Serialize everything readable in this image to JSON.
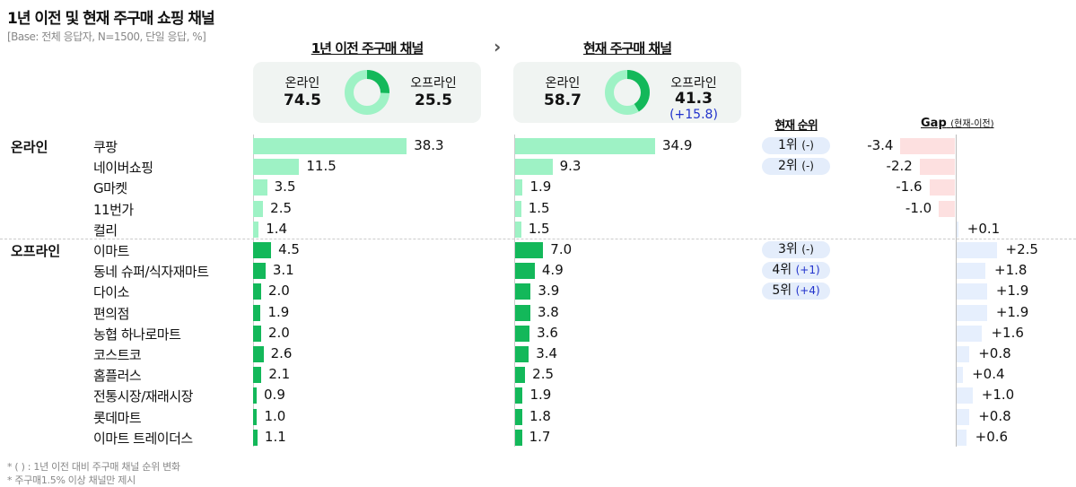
{
  "title": "1년 이전 및 현재 주구매 쇼핑 채널",
  "subtitle": "[Base: 전체 응답자, N=1500, 단일 응답, %]",
  "colors": {
    "online": "#9ef2c5",
    "offline": "#13b85a",
    "negative": "#fde0e0",
    "positive": "#e6effd",
    "change": "#2233cc"
  },
  "before": {
    "title": "1년 이전 주구매 채널",
    "online_label": "온라인",
    "online": "74.5",
    "offline_label": "오프라인",
    "offline": "25.5"
  },
  "arrow_icon": "chevron-right-icon",
  "now": {
    "title": "현재 주구매 채널",
    "online_label": "온라인",
    "online": "58.7",
    "offline_label": "오프라인",
    "offline": "41.3",
    "offline_change": "(+15.8)"
  },
  "rank_header": "현재 순위",
  "gap_header": "Gap",
  "gap_header_note": "(현재-이전)",
  "groups": [
    {
      "label": "온라인"
    },
    {
      "label": "오프라인"
    }
  ],
  "chart_data": {
    "type": "bar",
    "categories": [
      "쿠팡",
      "네이버쇼핑",
      "G마켓",
      "11번가",
      "컬리",
      "이마트",
      "동네 슈퍼/식자재마트",
      "다이소",
      "편의점",
      "농협 하나로마트",
      "코스트코",
      "홈플러스",
      "전통시장/재래시장",
      "롯데마트",
      "이마트 트레이더스"
    ],
    "category_group": [
      "온라인",
      "온라인",
      "온라인",
      "온라인",
      "온라인",
      "오프라인",
      "오프라인",
      "오프라인",
      "오프라인",
      "오프라인",
      "오프라인",
      "오프라인",
      "오프라인",
      "오프라인",
      "오프라인"
    ],
    "series": [
      {
        "name": "1년 이전 주구매 채널",
        "values": [
          38.3,
          11.5,
          3.5,
          2.5,
          1.4,
          4.5,
          3.1,
          2.0,
          1.9,
          2.0,
          2.6,
          2.1,
          0.9,
          1.0,
          1.1
        ],
        "labels": [
          "38.3",
          "11.5",
          "3.5",
          "2.5",
          "1.4",
          "4.5",
          "3.1",
          "2.0",
          "1.9",
          "2.0",
          "2.6",
          "2.1",
          "0.9",
          "1.0",
          "1.1"
        ]
      },
      {
        "name": "현재 주구매 채널",
        "values": [
          34.9,
          9.3,
          1.9,
          1.5,
          1.5,
          7.0,
          4.9,
          3.9,
          3.8,
          3.6,
          3.4,
          2.5,
          1.9,
          1.8,
          1.7
        ],
        "labels": [
          "34.9",
          "9.3",
          "1.9",
          "1.5",
          "1.5",
          "7.0",
          "4.9",
          "3.9",
          "3.8",
          "3.6",
          "3.4",
          "2.5",
          "1.9",
          "1.8",
          "1.7"
        ]
      },
      {
        "name": "Gap",
        "values": [
          -3.4,
          -2.2,
          -1.6,
          -1.0,
          0.1,
          2.5,
          1.8,
          1.9,
          1.9,
          1.6,
          0.8,
          0.4,
          1.0,
          0.8,
          0.6
        ],
        "labels": [
          "-3.4",
          "-2.2",
          "-1.6",
          "-1.0",
          "+0.1",
          "+2.5",
          "+1.8",
          "+1.9",
          "+1.9",
          "+1.6",
          "+0.8",
          "+0.4",
          "+1.0",
          "+0.8",
          "+0.6"
        ]
      }
    ],
    "ranks": [
      {
        "row": 0,
        "rank": "1위",
        "change": "(-)"
      },
      {
        "row": 1,
        "rank": "2위",
        "change": "(-)"
      },
      {
        "row": 5,
        "rank": "3위",
        "change": "(-)"
      },
      {
        "row": 6,
        "rank": "4위",
        "change": "(+1)"
      },
      {
        "row": 7,
        "rank": "5위",
        "change": "(+4)"
      }
    ]
  },
  "footnotes": [
    "* ( ) : 1년 이전 대비 주구매 채널 순위 변화",
    "* 주구매1.5% 이상 채널만 제시"
  ]
}
